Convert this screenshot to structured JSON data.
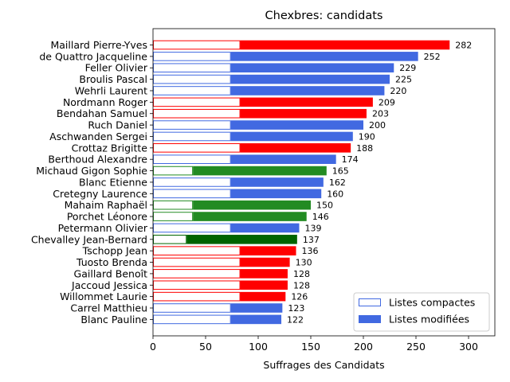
{
  "chart_data": {
    "type": "bar",
    "orientation": "horizontal",
    "stacked": true,
    "title": "Chexbres: candidats",
    "xlabel": "Suffrages des Candidats",
    "ylabel": "",
    "xlim": [
      0,
      325
    ],
    "xticks": [
      0,
      50,
      100,
      150,
      200,
      250,
      300
    ],
    "grid": false,
    "legend_position": "bottom-right",
    "legend": [
      {
        "name": "Listes compactes",
        "style": "outline",
        "color": "#4169e1"
      },
      {
        "name": "Listes modifiées",
        "style": "filled",
        "color": "#4169e1"
      }
    ],
    "candidates": [
      {
        "name": "Maillard Pierre-Yves",
        "compact": 83,
        "total": 282,
        "color": "#ff0000"
      },
      {
        "name": "de Quattro Jacqueline",
        "compact": 74,
        "total": 252,
        "color": "#4169e1"
      },
      {
        "name": "Feller Olivier",
        "compact": 74,
        "total": 229,
        "color": "#4169e1"
      },
      {
        "name": "Broulis Pascal",
        "compact": 74,
        "total": 225,
        "color": "#4169e1"
      },
      {
        "name": "Wehrli Laurent",
        "compact": 74,
        "total": 220,
        "color": "#4169e1"
      },
      {
        "name": "Nordmann Roger",
        "compact": 83,
        "total": 209,
        "color": "#ff0000"
      },
      {
        "name": "Bendahan Samuel",
        "compact": 83,
        "total": 203,
        "color": "#ff0000"
      },
      {
        "name": "Ruch Daniel",
        "compact": 74,
        "total": 200,
        "color": "#4169e1"
      },
      {
        "name": "Aschwanden Sergei",
        "compact": 74,
        "total": 190,
        "color": "#4169e1"
      },
      {
        "name": "Crottaz Brigitte",
        "compact": 83,
        "total": 188,
        "color": "#ff0000"
      },
      {
        "name": "Berthoud Alexandre",
        "compact": 74,
        "total": 174,
        "color": "#4169e1"
      },
      {
        "name": "Michaud Gigon Sophie",
        "compact": 38,
        "total": 165,
        "color": "#228b22"
      },
      {
        "name": "Blanc Etienne",
        "compact": 74,
        "total": 162,
        "color": "#4169e1"
      },
      {
        "name": "Cretegny Laurence",
        "compact": 74,
        "total": 160,
        "color": "#4169e1"
      },
      {
        "name": "Mahaim Raphaël",
        "compact": 38,
        "total": 150,
        "color": "#228b22"
      },
      {
        "name": "Porchet Léonore",
        "compact": 38,
        "total": 146,
        "color": "#228b22"
      },
      {
        "name": "Petermann Olivier",
        "compact": 74,
        "total": 139,
        "color": "#4169e1"
      },
      {
        "name": "Chevalley Jean-Bernard",
        "compact": 32,
        "total": 137,
        "color": "#006400"
      },
      {
        "name": "Tschopp Jean",
        "compact": 83,
        "total": 136,
        "color": "#ff0000"
      },
      {
        "name": "Tuosto Brenda",
        "compact": 83,
        "total": 130,
        "color": "#ff0000"
      },
      {
        "name": "Gaillard Benoît",
        "compact": 83,
        "total": 128,
        "color": "#ff0000"
      },
      {
        "name": "Jaccoud Jessica",
        "compact": 83,
        "total": 128,
        "color": "#ff0000"
      },
      {
        "name": "Willommet Laurie",
        "compact": 83,
        "total": 126,
        "color": "#ff0000"
      },
      {
        "name": "Carrel Matthieu",
        "compact": 74,
        "total": 123,
        "color": "#4169e1"
      },
      {
        "name": "Blanc Pauline",
        "compact": 74,
        "total": 122,
        "color": "#4169e1"
      }
    ]
  }
}
